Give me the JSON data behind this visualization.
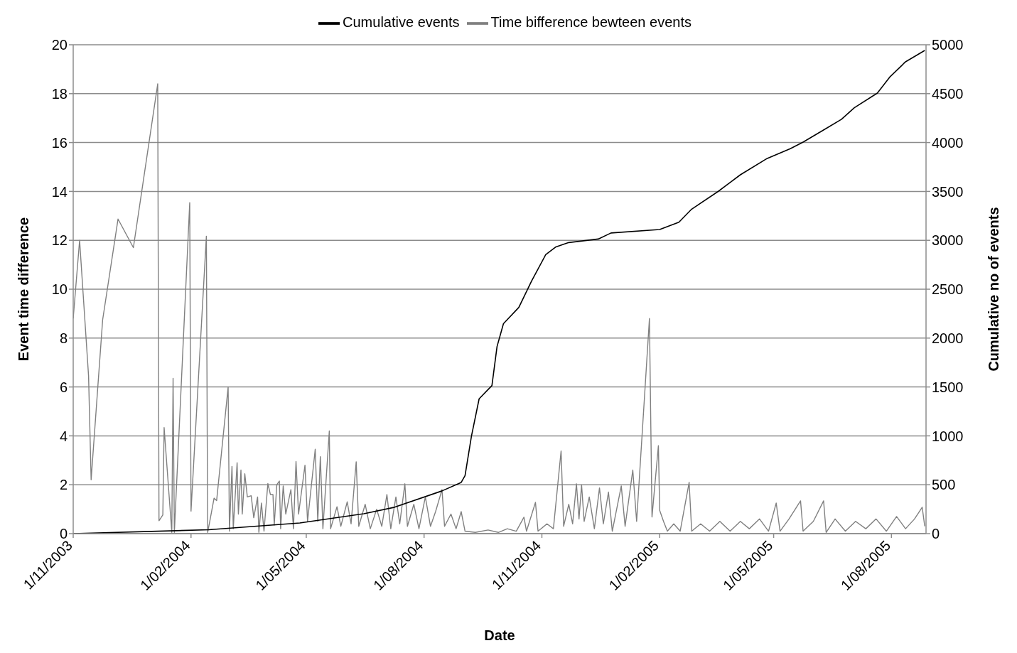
{
  "chart_data": {
    "type": "line",
    "xlabel": "Date",
    "ylabel": "Event time difference",
    "y2label": "Cumulative no of events",
    "legend": "top",
    "grid": "y",
    "marker": "none",
    "line_style": "solid",
    "xlim": [
      "2003-11-01",
      "2005-08-28"
    ],
    "xticks": [
      {
        "value": "2003-11-01",
        "label": "1/11/2003"
      },
      {
        "value": "2004-02-01",
        "label": "1/02/2004"
      },
      {
        "value": "2004-05-01",
        "label": "1/05/2004"
      },
      {
        "value": "2004-08-01",
        "label": "1/08/2004"
      },
      {
        "value": "2004-11-01",
        "label": "1/11/2004"
      },
      {
        "value": "2005-02-01",
        "label": "1/02/2005"
      },
      {
        "value": "2005-05-01",
        "label": "1/05/2005"
      },
      {
        "value": "2005-08-01",
        "label": "1/08/2005"
      }
    ],
    "ylim": [
      0,
      20
    ],
    "yticks": [
      0,
      2,
      4,
      6,
      8,
      10,
      12,
      14,
      16,
      18,
      20
    ],
    "y2lim": [
      0,
      5000
    ],
    "y2ticks": [
      0,
      500,
      1000,
      1500,
      2000,
      2500,
      3000,
      3500,
      4000,
      4500,
      5000
    ],
    "series": [
      {
        "name": "Time bifference bewteen events",
        "color": "#808080",
        "x": [
          "2003-11-01",
          "2003-11-06",
          "2003-11-13",
          "2003-11-15",
          "2003-11-24",
          "2003-12-06",
          "2003-12-18",
          "2004-01-06",
          "2004-01-07",
          "2004-01-10",
          "2004-01-11",
          "2004-01-17",
          "2004-01-18",
          "2004-01-19",
          "2004-01-31",
          "2004-02-01",
          "2004-02-13",
          "2004-02-14",
          "2004-02-16",
          "2004-02-19",
          "2004-02-21",
          "2004-03-01",
          "2004-03-02",
          "2004-03-04",
          "2004-03-05",
          "2004-03-08",
          "2004-03-09",
          "2004-03-11",
          "2004-03-12",
          "2004-03-14",
          "2004-03-16",
          "2004-03-19",
          "2004-03-21",
          "2004-03-24",
          "2004-03-25",
          "2004-03-27",
          "2004-03-29",
          "2004-04-01",
          "2004-04-03",
          "2004-04-05",
          "2004-04-06",
          "2004-04-08",
          "2004-04-10",
          "2004-04-11",
          "2004-04-13",
          "2004-04-15",
          "2004-04-19",
          "2004-04-21",
          "2004-04-23",
          "2004-04-25",
          "2004-04-30",
          "2004-05-02",
          "2004-05-08",
          "2004-05-10",
          "2004-05-12",
          "2004-05-14",
          "2004-05-19",
          "2004-05-20",
          "2004-05-25",
          "2004-05-28",
          "2004-06-02",
          "2004-06-05",
          "2004-06-09",
          "2004-06-11",
          "2004-06-16",
          "2004-06-20",
          "2004-06-25",
          "2004-06-29",
          "2004-07-03",
          "2004-07-06",
          "2004-07-10",
          "2004-07-13",
          "2004-07-17",
          "2004-07-19",
          "2004-07-24",
          "2004-07-28",
          "2004-08-02",
          "2004-08-06",
          "2004-08-10",
          "2004-08-15",
          "2004-08-17",
          "2004-08-22",
          "2004-08-26",
          "2004-08-30",
          "2004-09-02",
          "2004-09-10",
          "2004-09-20",
          "2004-09-28",
          "2004-10-05",
          "2004-10-12",
          "2004-10-18",
          "2004-10-20",
          "2004-10-27",
          "2004-10-29",
          "2004-11-05",
          "2004-11-10",
          "2004-11-16",
          "2004-11-18",
          "2004-11-22",
          "2004-11-25",
          "2004-11-28",
          "2004-11-30",
          "2004-12-02",
          "2004-12-04",
          "2004-12-08",
          "2004-12-12",
          "2004-12-16",
          "2004-12-19",
          "2004-12-23",
          "2004-12-26",
          "2005-01-02",
          "2005-01-05",
          "2005-01-11",
          "2005-01-14",
          "2005-01-24",
          "2005-01-26",
          "2005-01-31",
          "2005-02-01",
          "2005-02-04",
          "2005-02-07",
          "2005-02-12",
          "2005-02-17",
          "2005-02-24",
          "2005-02-26",
          "2005-03-05",
          "2005-03-12",
          "2005-03-20",
          "2005-03-28",
          "2005-04-05",
          "2005-04-12",
          "2005-04-20",
          "2005-04-27",
          "2005-05-03",
          "2005-05-06",
          "2005-05-13",
          "2005-05-22",
          "2005-05-24",
          "2005-06-01",
          "2005-06-09",
          "2005-06-11",
          "2005-06-18",
          "2005-06-26",
          "2005-07-04",
          "2005-07-12",
          "2005-07-20",
          "2005-07-28",
          "2005-08-05",
          "2005-08-12",
          "2005-08-19",
          "2005-08-25",
          "2005-08-27"
        ],
        "values": [
          8.8,
          12.0,
          6.45,
          2.2,
          8.75,
          12.87,
          11.7,
          18.4,
          0.53,
          0.77,
          4.34,
          0.05,
          6.35,
          0.05,
          13.54,
          0.92,
          12.17,
          0.05,
          0.6,
          1.45,
          1.35,
          6.0,
          0.1,
          2.75,
          0.2,
          2.9,
          0.8,
          2.6,
          0.8,
          2.45,
          1.5,
          1.55,
          0.65,
          1.5,
          0.05,
          1.25,
          0.1,
          2.05,
          1.6,
          1.6,
          0.35,
          2.0,
          2.15,
          0.2,
          1.95,
          0.8,
          1.8,
          0.2,
          2.95,
          0.8,
          2.8,
          0.5,
          3.45,
          0.5,
          3.15,
          0.2,
          4.2,
          0.2,
          1.1,
          0.3,
          1.3,
          0.4,
          2.94,
          0.3,
          1.2,
          0.2,
          1.0,
          0.3,
          1.6,
          0.2,
          1.5,
          0.4,
          2.04,
          0.3,
          1.2,
          0.2,
          1.5,
          0.3,
          0.9,
          1.8,
          0.3,
          0.8,
          0.2,
          0.9,
          0.1,
          0.05,
          0.15,
          0.05,
          0.2,
          0.1,
          0.67,
          0.1,
          1.28,
          0.1,
          0.4,
          0.2,
          3.38,
          0.3,
          1.2,
          0.4,
          2.04,
          0.6,
          2.0,
          0.5,
          1.5,
          0.2,
          1.87,
          0.4,
          1.7,
          0.1,
          1.95,
          0.3,
          2.6,
          0.5,
          8.8,
          0.68,
          3.6,
          0.95,
          0.5,
          0.1,
          0.4,
          0.1,
          2.1,
          0.1,
          0.4,
          0.1,
          0.5,
          0.1,
          0.5,
          0.2,
          0.6,
          0.1,
          1.25,
          0.1,
          0.6,
          1.34,
          0.1,
          0.5,
          1.34,
          0.05,
          0.6,
          0.1,
          0.5,
          0.2,
          0.6,
          0.1,
          0.7,
          0.2,
          0.6,
          1.08,
          0.3
        ]
      },
      {
        "name": "Cumulative events",
        "color": "#000000",
        "axis": "y2",
        "x": [
          "2003-11-01",
          "2004-02-15",
          "2004-04-26",
          "2004-06-15",
          "2004-07-09",
          "2004-08-15",
          "2004-08-30",
          "2004-09-02",
          "2004-09-07",
          "2004-09-13",
          "2004-09-23",
          "2004-09-27",
          "2004-10-02",
          "2004-10-14",
          "2004-10-24",
          "2004-11-04",
          "2004-11-12",
          "2004-11-22",
          "2004-12-15",
          "2004-12-25",
          "2005-02-01",
          "2005-02-16",
          "2005-02-26",
          "2005-03-19",
          "2005-04-05",
          "2005-04-26",
          "2005-05-14",
          "2005-05-24",
          "2005-06-08",
          "2005-06-23",
          "2005-07-03",
          "2005-07-21",
          "2005-07-31",
          "2005-08-12",
          "2005-08-27"
        ],
        "values": [
          0,
          40,
          109,
          204,
          270,
          437,
          524,
          593,
          997,
          1379,
          1514,
          1914,
          2147,
          2314,
          2584,
          2853,
          2933,
          2977,
          3013,
          3075,
          3111,
          3185,
          3319,
          3503,
          3670,
          3838,
          3937,
          4004,
          4121,
          4238,
          4356,
          4506,
          4674,
          4826,
          4942
        ]
      }
    ]
  }
}
